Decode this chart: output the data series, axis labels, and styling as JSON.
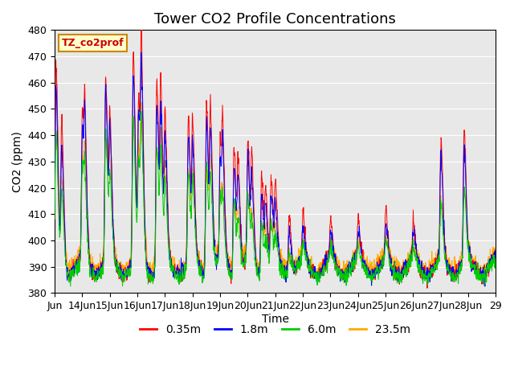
{
  "title": "Tower CO2 Profile Concentrations",
  "xlabel": "Time",
  "ylabel": "CO2 (ppm)",
  "ylim": [
    380,
    480
  ],
  "yticks": [
    380,
    390,
    400,
    410,
    420,
    430,
    440,
    450,
    460,
    470,
    480
  ],
  "x_tick_labels": [
    "Jun",
    "14Jun",
    "15Jun",
    "16Jun",
    "17Jun",
    "18Jun",
    "19Jun",
    "20Jun",
    "21Jun",
    "22Jun",
    "23Jun",
    "24Jun",
    "25Jun",
    "26Jun",
    "27Jun",
    "28Jun",
    "29"
  ],
  "series_labels": [
    "0.35m",
    "1.8m",
    "6.0m",
    "23.5m"
  ],
  "series_colors": [
    "#ff0000",
    "#0000ff",
    "#00cc00",
    "#ffaa00"
  ],
  "legend_label": "TZ_co2prof",
  "legend_bg": "#ffffcc",
  "legend_border": "#cc8800",
  "background_color": "#e8e8e8",
  "title_fontsize": 13,
  "label_fontsize": 10,
  "tick_fontsize": 9,
  "n_days": 16,
  "pts_per_day": 96,
  "base_co2": 390,
  "peak_positions": [
    0.05,
    0.25,
    1.0,
    1.1,
    1.85,
    2.0,
    2.85,
    3.05,
    3.15,
    3.7,
    3.85,
    4.0,
    4.85,
    5.0,
    5.5,
    5.65,
    6.0,
    6.1,
    6.5,
    6.65,
    7.0,
    7.15,
    7.5,
    7.65,
    7.85,
    8.0,
    8.5,
    9.0,
    10.0,
    11.0,
    12.0,
    13.0,
    14.0,
    14.85
  ],
  "red_heights": [
    75,
    55,
    55,
    40,
    70,
    50,
    80,
    60,
    65,
    70,
    60,
    50,
    55,
    48,
    65,
    55,
    45,
    35,
    48,
    38,
    45,
    35,
    38,
    28,
    32,
    25,
    22,
    18,
    15,
    15,
    18,
    15,
    45,
    50
  ],
  "blue_heights": [
    65,
    45,
    50,
    35,
    65,
    45,
    72,
    55,
    58,
    62,
    52,
    42,
    48,
    40,
    58,
    48,
    38,
    28,
    40,
    30,
    38,
    28,
    30,
    22,
    25,
    18,
    15,
    12,
    10,
    10,
    12,
    10,
    38,
    42
  ],
  "green_heights": [
    50,
    30,
    38,
    22,
    50,
    30,
    55,
    38,
    42,
    48,
    38,
    28,
    35,
    28,
    42,
    32,
    25,
    15,
    28,
    18,
    25,
    15,
    20,
    12,
    15,
    10,
    8,
    7,
    6,
    6,
    8,
    6,
    22,
    28
  ],
  "orange_heights": [
    45,
    28,
    35,
    20,
    45,
    28,
    50,
    35,
    38,
    44,
    35,
    25,
    32,
    25,
    38,
    30,
    22,
    12,
    25,
    15,
    22,
    12,
    18,
    10,
    12,
    8,
    6,
    5,
    5,
    5,
    6,
    5,
    20,
    25
  ]
}
